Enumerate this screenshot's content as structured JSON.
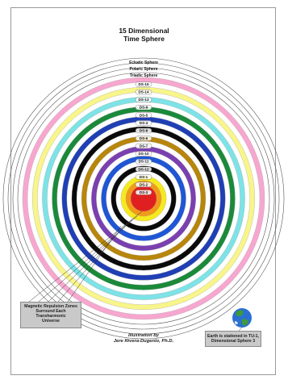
{
  "title": {
    "line1": "15 Dimensional",
    "line2": "Time Sphere"
  },
  "outer_spheres": [
    "Eckatic Sphere",
    "Polaric Sphere",
    "Triadic Sphere"
  ],
  "ds_labels": [
    "DS-15",
    "DS-14",
    "DS-13",
    "DS-9",
    "DS-5",
    "DS-4",
    "DS-8",
    "DS-6",
    "DS-7",
    "DS-10",
    "DS-11",
    "DS-12",
    "DS-1",
    "DS-2",
    "DS-3"
  ],
  "rings": [
    {
      "color": "#f7a7cf"
    },
    {
      "color": "#ffffff"
    },
    {
      "color": "#f8f58a"
    },
    {
      "color": "#ffffff"
    },
    {
      "color": "#7de3e6"
    },
    {
      "color": "#ffffff"
    },
    {
      "color": "#1a8a3a"
    },
    {
      "color": "#ffffff"
    },
    {
      "color": "#1f3fb5"
    },
    {
      "color": "#ffffff"
    },
    {
      "color": "#0a0a0a"
    },
    {
      "color": "#ffffff"
    },
    {
      "color": "#b8860b"
    },
    {
      "color": "#ffffff"
    },
    {
      "color": "#7a3fb0"
    },
    {
      "color": "#ffffff"
    },
    {
      "color": "#1e56d6"
    },
    {
      "color": "#ffffff"
    },
    {
      "color": "#0a0a0a"
    },
    {
      "color": "#ffffff"
    },
    {
      "color": "#f5ea20"
    },
    {
      "color": "#f29a1a"
    },
    {
      "color": "#e02020"
    }
  ],
  "left_note": {
    "lines": [
      "Magnetic Repulsion Zones",
      "Surround Each",
      "Transharmonic",
      "Universe"
    ]
  },
  "right_note": {
    "lines": [
      "Earth is stationed in TU-1,",
      "Dimensional Sphere 3"
    ]
  },
  "credit": {
    "line1": "Illustration by",
    "line2": "Jere Rivera-Dugenio, Ph.D."
  },
  "icons": {
    "earth": "earth-globe-icon"
  }
}
